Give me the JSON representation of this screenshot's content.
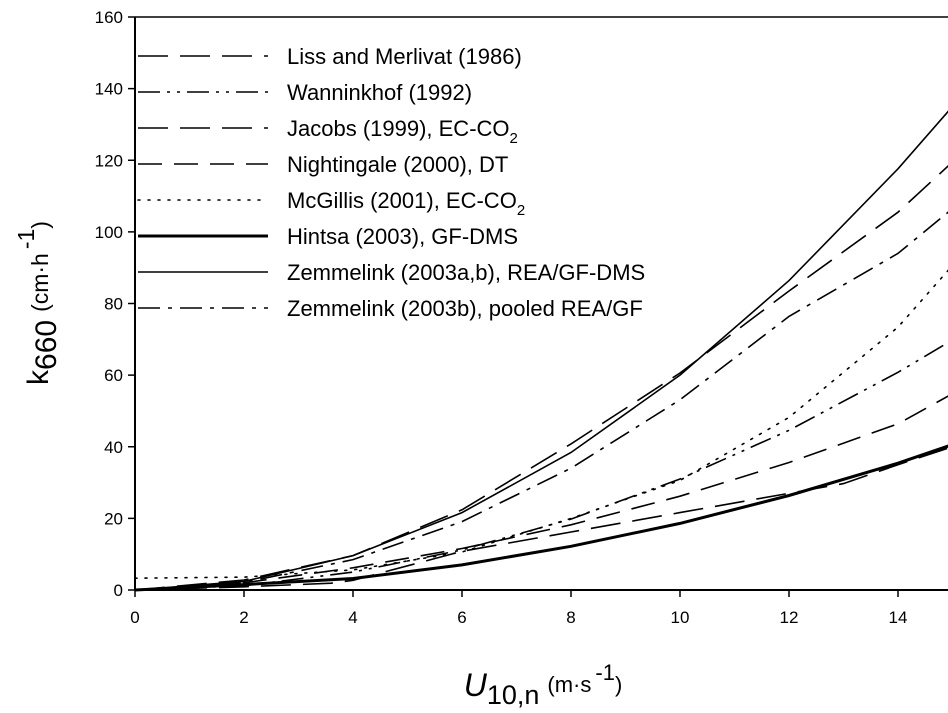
{
  "chart_data": {
    "type": "line",
    "title": "",
    "xlabel": {
      "main": "U",
      "sub": "10,n",
      "unit": "(m·s",
      "sup": "-1",
      "close": ")"
    },
    "ylabel": {
      "main": "k",
      "sub": "660",
      "unit": "(cm·h",
      "sup": "-1",
      "close": ")"
    },
    "xlim": [
      0,
      15
    ],
    "ylim": [
      0,
      160
    ],
    "xticks": [
      0,
      2,
      4,
      6,
      8,
      10,
      12,
      14
    ],
    "yticks": [
      0,
      20,
      40,
      60,
      80,
      100,
      120,
      140,
      160
    ],
    "grid": false,
    "legend_position": "top-left",
    "series": [
      {
        "name": "Liss and Merlivat (1986)",
        "style": "longdash",
        "weight": "normal",
        "x": [
          0,
          2,
          3.6,
          4,
          6,
          8,
          10,
          12,
          13,
          14,
          15
        ],
        "y": [
          0,
          0.9,
          1.9,
          2.7,
          10.8,
          16.2,
          21.6,
          27.0,
          29.7,
          35.0,
          40.0
        ]
      },
      {
        "name": "Wanninkhof (1992)",
        "style": "dashdotdot",
        "weight": "normal",
        "x": [
          0,
          2,
          4,
          6,
          8,
          10,
          12,
          14,
          15
        ],
        "y": [
          0,
          1.2,
          5.0,
          11.2,
          19.8,
          31.0,
          44.6,
          60.8,
          69.8
        ]
      },
      {
        "name": "Jacobs (1999), EC-CO",
        "sub": "2",
        "style": "longdash",
        "weight": "normal",
        "x": [
          0,
          2,
          4,
          6,
          8,
          10,
          12,
          14,
          15
        ],
        "y": [
          0,
          2.8,
          9.6,
          22.4,
          40.8,
          60.6,
          83.5,
          105.5,
          119.5
        ]
      },
      {
        "name": "Nightingale (2000), DT",
        "style": "medash",
        "weight": "normal",
        "x": [
          0,
          2,
          4,
          6,
          8,
          10,
          12,
          14,
          15
        ],
        "y": [
          0,
          2.0,
          6.2,
          11.6,
          18.2,
          26.2,
          35.6,
          46.4,
          54.8
        ]
      },
      {
        "name": "McGillis (2001), EC-CO",
        "sub": "2",
        "style": "dotted",
        "weight": "normal",
        "x": [
          0,
          2,
          4,
          6,
          8,
          10,
          12,
          14,
          15
        ],
        "y": [
          3.3,
          3.6,
          5.6,
          10.6,
          20.0,
          30.6,
          48.2,
          73.4,
          90.6
        ]
      },
      {
        "name": "Hintsa (2003), GF-DMS",
        "style": "solid",
        "weight": "bold",
        "x": [
          0,
          2,
          4,
          6,
          8,
          10,
          12,
          14,
          15
        ],
        "y": [
          0,
          1.5,
          3.2,
          7.0,
          12.2,
          18.6,
          26.4,
          35.4,
          40.6
        ]
      },
      {
        "name": "Zemmelink (2003a,b), REA/GF-DMS",
        "style": "solid",
        "weight": "normal",
        "x": [
          0,
          2,
          4,
          6,
          8,
          10,
          12,
          14,
          15
        ],
        "y": [
          0,
          2.4,
          9.6,
          21.6,
          38.4,
          60.0,
          86.4,
          117.6,
          135.0
        ]
      },
      {
        "name": "Zemmelink (2003b), pooled REA/GF",
        "style": "dashdot",
        "weight": "normal",
        "x": [
          0,
          2,
          4,
          6,
          8,
          10,
          12,
          14,
          15
        ],
        "y": [
          0,
          2.1,
          8.5,
          19.1,
          34.0,
          53.1,
          76.4,
          94.0,
          106.5
        ]
      }
    ]
  }
}
